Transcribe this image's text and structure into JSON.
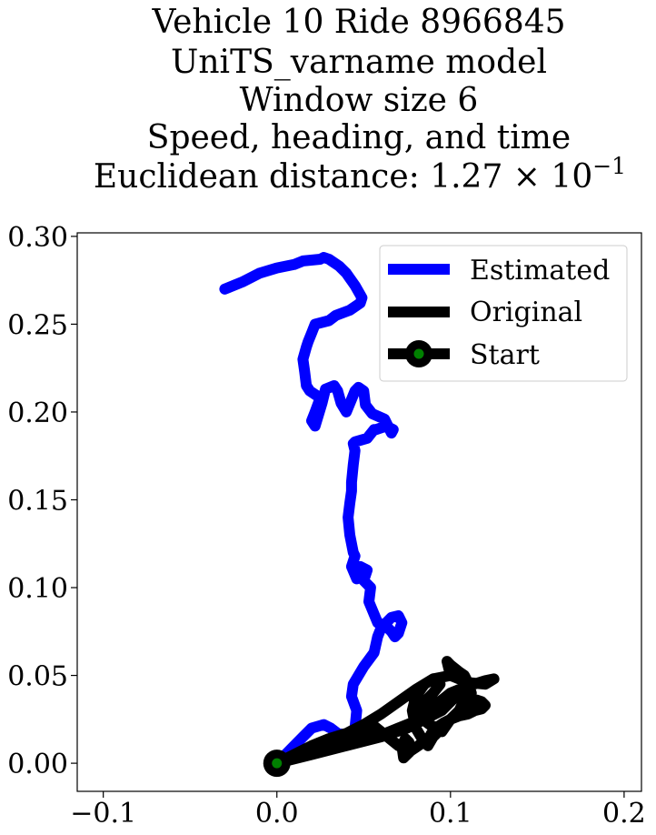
{
  "chart_data": {
    "type": "line",
    "title_lines": [
      "Vehicle 10 Ride 8966845",
      "UniTS_varname model",
      "Window size 6",
      "Speed, heading, and time"
    ],
    "metric_label": "Euclidean distance: 1.27",
    "metric_exponent_base": "10",
    "metric_exponent": "−1",
    "xlabel": "",
    "ylabel": "",
    "xlim": [
      -0.115,
      0.21
    ],
    "ylim": [
      -0.016,
      0.302
    ],
    "xticks": [
      -0.1,
      0.0,
      0.1,
      0.2
    ],
    "xtick_labels": [
      "−0.1",
      "0.0",
      "0.1",
      "0.2"
    ],
    "yticks": [
      0.0,
      0.05,
      0.1,
      0.15,
      0.2,
      0.25,
      0.3
    ],
    "ytick_labels": [
      "0.00",
      "0.05",
      "0.10",
      "0.15",
      "0.20",
      "0.25",
      "0.30"
    ],
    "grid": false,
    "legend_position": "top-right",
    "series": [
      {
        "name": "Estimated",
        "color": "#0000ff",
        "x": [
          0.0,
          0.005,
          0.01,
          0.015,
          0.02,
          0.027,
          0.031,
          0.035,
          0.04,
          0.045,
          0.046,
          0.043,
          0.044,
          0.05,
          0.056,
          0.058,
          0.06,
          0.063,
          0.066,
          0.07,
          0.072,
          0.07,
          0.068,
          0.066,
          0.062,
          0.058,
          0.053,
          0.054,
          0.05,
          0.052,
          0.048,
          0.046,
          0.043,
          0.045,
          0.044,
          0.042,
          0.041,
          0.042,
          0.043,
          0.043,
          0.044,
          0.045,
          0.044,
          0.045,
          0.052,
          0.056,
          0.057,
          0.063,
          0.067,
          0.066,
          0.062,
          0.055,
          0.051,
          0.05,
          0.047,
          0.045,
          0.04,
          0.037,
          0.035,
          0.033,
          0.028,
          0.026,
          0.022,
          0.02,
          0.022,
          0.025,
          0.019,
          0.017,
          0.016,
          0.015,
          0.017,
          0.018,
          0.02,
          0.022,
          0.03,
          0.034,
          0.042,
          0.048,
          0.049,
          0.045,
          0.04,
          0.036,
          0.03,
          0.027,
          0.025,
          0.015,
          0.01,
          0.0,
          -0.01,
          -0.02,
          -0.03
        ],
        "y": [
          0.0,
          0.005,
          0.01,
          0.015,
          0.02,
          0.022,
          0.02,
          0.017,
          0.016,
          0.02,
          0.03,
          0.038,
          0.045,
          0.055,
          0.063,
          0.072,
          0.077,
          0.08,
          0.083,
          0.084,
          0.08,
          0.074,
          0.072,
          0.075,
          0.079,
          0.08,
          0.092,
          0.1,
          0.104,
          0.11,
          0.112,
          0.105,
          0.112,
          0.118,
          0.12,
          0.13,
          0.14,
          0.148,
          0.155,
          0.16,
          0.17,
          0.178,
          0.182,
          0.183,
          0.185,
          0.19,
          0.19,
          0.192,
          0.19,
          0.188,
          0.196,
          0.199,
          0.204,
          0.212,
          0.214,
          0.212,
          0.2,
          0.205,
          0.212,
          0.215,
          0.213,
          0.205,
          0.192,
          0.195,
          0.2,
          0.208,
          0.212,
          0.215,
          0.223,
          0.23,
          0.237,
          0.24,
          0.245,
          0.25,
          0.252,
          0.255,
          0.258,
          0.262,
          0.265,
          0.272,
          0.279,
          0.283,
          0.287,
          0.288,
          0.287,
          0.286,
          0.284,
          0.282,
          0.279,
          0.274,
          0.27
        ]
      },
      {
        "name": "Original",
        "color": "#000000",
        "x": [
          0.0,
          0.02,
          0.04,
          0.06,
          0.075,
          0.085,
          0.095,
          0.1,
          0.105,
          0.11,
          0.108,
          0.1,
          0.09,
          0.08,
          0.07,
          0.06,
          0.05,
          0.04,
          0.02,
          0.0,
          0.02,
          0.04,
          0.06,
          0.07,
          0.08,
          0.085,
          0.09,
          0.095,
          0.1,
          0.11,
          0.12,
          0.125,
          0.12,
          0.11,
          0.1,
          0.098,
          0.1,
          0.105,
          0.108,
          0.11,
          0.112,
          0.108,
          0.105,
          0.1,
          0.095,
          0.09,
          0.087,
          0.083,
          0.08,
          0.078,
          0.08,
          0.085,
          0.09,
          0.094,
          0.09,
          0.085,
          0.082,
          0.084,
          0.088,
          0.092,
          0.095,
          0.1,
          0.105,
          0.11,
          0.115,
          0.118,
          0.12,
          0.118,
          0.114,
          0.11,
          0.105,
          0.1,
          0.096,
          0.093,
          0.091,
          0.089,
          0.088,
          0.085,
          0.083,
          0.08,
          0.077,
          0.075,
          0.073,
          0.072,
          0.074,
          0.076,
          0.075,
          0.07,
          0.065,
          0.06,
          0.055,
          0.05,
          0.045,
          0.04,
          0.03,
          0.02,
          0.01,
          0.0
        ],
        "y": [
          0.0,
          0.005,
          0.01,
          0.015,
          0.02,
          0.025,
          0.03,
          0.035,
          0.04,
          0.045,
          0.048,
          0.05,
          0.048,
          0.042,
          0.035,
          0.028,
          0.022,
          0.017,
          0.01,
          0.0,
          0.008,
          0.012,
          0.016,
          0.02,
          0.024,
          0.028,
          0.032,
          0.036,
          0.04,
          0.044,
          0.047,
          0.048,
          0.045,
          0.046,
          0.05,
          0.058,
          0.056,
          0.052,
          0.05,
          0.046,
          0.04,
          0.036,
          0.03,
          0.025,
          0.02,
          0.015,
          0.01,
          0.015,
          0.02,
          0.03,
          0.038,
          0.045,
          0.048,
          0.045,
          0.04,
          0.035,
          0.03,
          0.025,
          0.022,
          0.02,
          0.018,
          0.025,
          0.03,
          0.034,
          0.036,
          0.035,
          0.033,
          0.031,
          0.03,
          0.028,
          0.027,
          0.025,
          0.023,
          0.021,
          0.019,
          0.017,
          0.015,
          0.013,
          0.011,
          0.009,
          0.007,
          0.005,
          0.003,
          0.01,
          0.014,
          0.012,
          0.008,
          0.01,
          0.014,
          0.018,
          0.022,
          0.017,
          0.013,
          0.017,
          0.014,
          0.01,
          0.005,
          0.0
        ]
      }
    ],
    "start_marker": {
      "name": "Start",
      "x": 0.0,
      "y": 0.0,
      "outer_color": "#000000",
      "inner_color": "#008000"
    }
  }
}
